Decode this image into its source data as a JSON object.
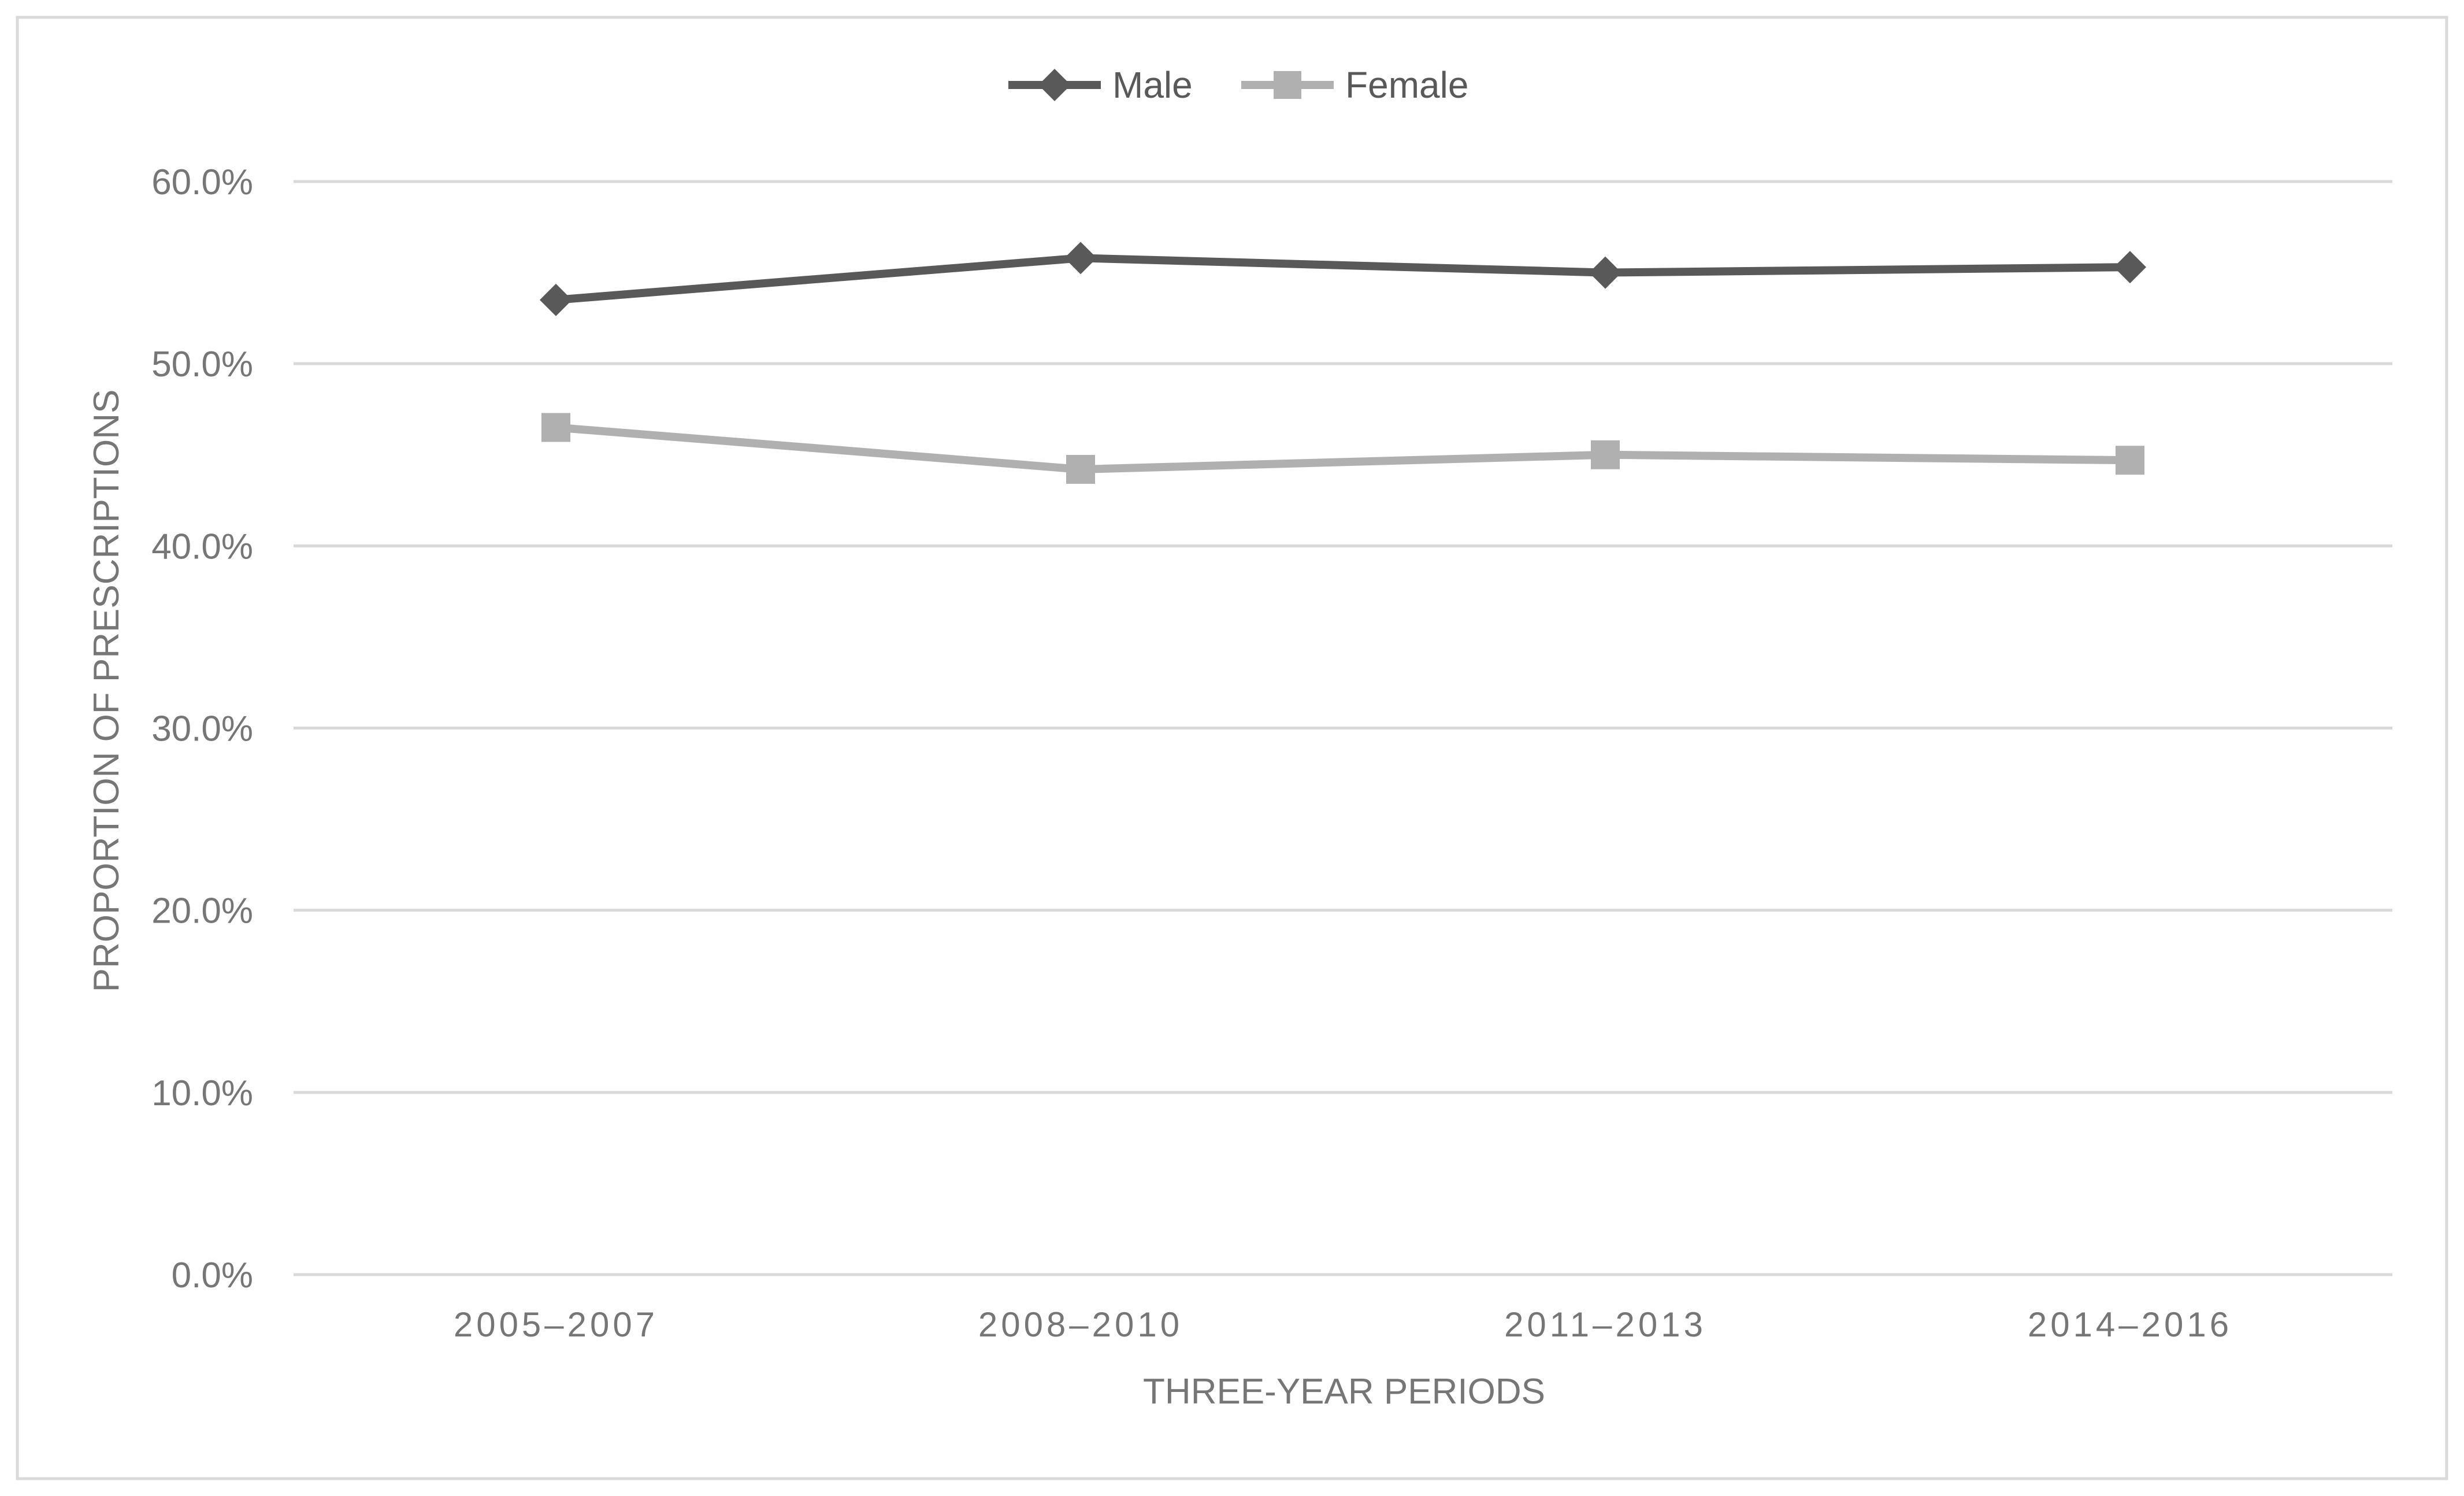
{
  "chart_data": {
    "type": "line",
    "title": "",
    "xlabel": "THREE-YEAR PERIODS",
    "ylabel": "PROPORTION OF PRESCRIPTIONS",
    "categories": [
      "2005–2007",
      "2008–2010",
      "2011–2013",
      "2014–2016"
    ],
    "series": [
      {
        "name": "Male",
        "values": [
          53.5,
          55.8,
          55.0,
          55.3
        ],
        "color": "#595959",
        "marker": "diamond"
      },
      {
        "name": "Female",
        "values": [
          46.5,
          44.2,
          45.0,
          44.7
        ],
        "color": "#b0b0b0",
        "marker": "square"
      }
    ],
    "ylim": [
      0,
      60
    ],
    "yticks": [
      0,
      10,
      20,
      30,
      40,
      50,
      60
    ],
    "ytick_labels": [
      "0.0%",
      "10.0%",
      "20.0%",
      "30.0%",
      "40.0%",
      "50.0%",
      "60.0%"
    ],
    "grid": true,
    "legend_position": "top-center",
    "colors": {
      "gridline": "#d9d9d9",
      "frame": "#d9d9d9",
      "axis_text": "#767676",
      "legend_text": "#595959"
    }
  }
}
